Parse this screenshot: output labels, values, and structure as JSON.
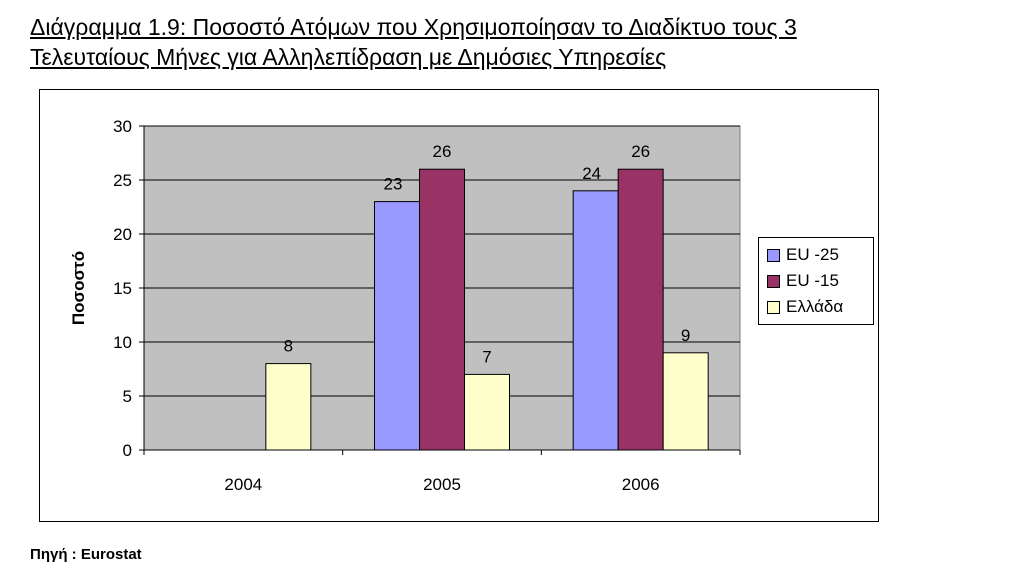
{
  "title": {
    "line1": "Διάγραμμα 1.9: Ποσοστό Ατόμων  που Χρησιμοποίησαν το Διαδίκτυο τους 3",
    "line2": "Τελευταίους Μήνες για Αλληλεπίδραση με Δημόσιες Υπηρεσίες"
  },
  "source": "Πηγή : Eurostat",
  "chart_data": {
    "type": "bar",
    "title": "Διάγραμμα 1.9: Ποσοστό Ατόμων  που Χρησιμοποίησαν το Διαδίκτυο τους 3 Τελευταίους Μήνες για Αλληλεπίδραση με Δημόσιες Υπηρεσίες",
    "categories": [
      "2004",
      "2005",
      "2006"
    ],
    "series": [
      {
        "name": "EU -25",
        "values": [
          null,
          23,
          24
        ],
        "color": "#9999ff"
      },
      {
        "name": "EU -15",
        "values": [
          null,
          26,
          26
        ],
        "color": "#993366"
      },
      {
        "name": "Ελλάδα",
        "values": [
          8,
          7,
          9
        ],
        "color": "#ffffcc"
      }
    ],
    "xlabel": "",
    "ylabel": "Ποσοστό",
    "ylim": [
      0,
      30
    ],
    "yticks": [
      0,
      5,
      10,
      15,
      20,
      25,
      30
    ],
    "grid": true,
    "plot_background": "#c0c0c0",
    "legend_position": "right"
  }
}
